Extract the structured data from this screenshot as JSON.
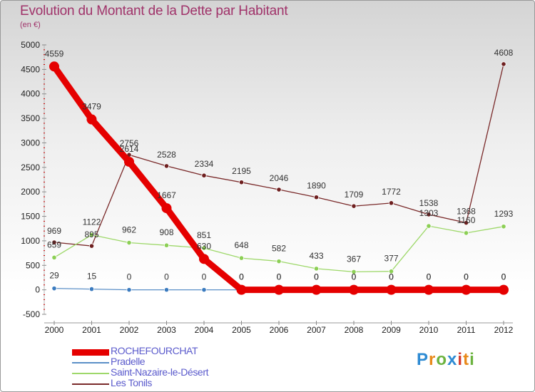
{
  "title": "Evolution du Montant de la Dette par Habitant",
  "unit_label": "(en €)",
  "logo": {
    "text": "Proxiti",
    "letter_colors": [
      "#2e8bd3",
      "#e8891a",
      "#6cb33f",
      "#2e8bd3",
      "#d63b2f",
      "#e8891a",
      "#6cb33f"
    ]
  },
  "chart_data": {
    "type": "line",
    "title": "Evolution du Montant de la Dette par Habitant",
    "ylabel": "(en €)",
    "xlabel": "",
    "x": [
      "2000",
      "2001",
      "2002",
      "2003",
      "2004",
      "2005",
      "2006",
      "2007",
      "2008",
      "2009",
      "2010",
      "2011",
      "2012"
    ],
    "ylim": [
      -500,
      5000
    ],
    "yticks": [
      "-500",
      "0",
      "500",
      "1000",
      "1500",
      "2000",
      "2500",
      "3000",
      "3500",
      "4000",
      "4500",
      "5000"
    ],
    "grid": false,
    "legend_position": "bottom-left",
    "series": [
      {
        "name": "ROCHEFOURCHAT",
        "color": "#e50000",
        "marker": "#e50000",
        "emphasis": true,
        "values": [
          4559,
          3479,
          2614,
          1667,
          630,
          0,
          0,
          0,
          0,
          0,
          0,
          0,
          0
        ],
        "labels": [
          "4559",
          "3479",
          "2614",
          "1667",
          "630",
          "0",
          "0",
          "0",
          "0",
          "0",
          "0",
          "0",
          "0"
        ]
      },
      {
        "name": "Pradelle",
        "color": "#5b8fc7",
        "marker": "#3b7bbf",
        "emphasis": false,
        "values": [
          29,
          15,
          0,
          0,
          0,
          0,
          0,
          0,
          0,
          0,
          0,
          0,
          0
        ],
        "labels": [
          "29",
          "15",
          "0",
          "0",
          "0",
          "0",
          "0",
          "0",
          "0",
          "0",
          "0",
          "0",
          "0"
        ]
      },
      {
        "name": "Saint-Nazaire-le-Désert",
        "color": "#9ed86a",
        "marker": "#8ccf55",
        "emphasis": false,
        "values": [
          659,
          1122,
          962,
          908,
          851,
          648,
          582,
          433,
          367,
          377,
          1303,
          1160,
          1293
        ],
        "labels": [
          "659",
          "1122",
          "962",
          "908",
          "851",
          "648",
          "582",
          "433",
          "367",
          "377",
          "1303",
          "1160",
          "1293"
        ]
      },
      {
        "name": "Les Tonils",
        "color": "#7a2a2a",
        "marker": "#6e1f1f",
        "emphasis": false,
        "values": [
          969,
          895,
          2756,
          2528,
          2334,
          2195,
          2046,
          1890,
          1709,
          1772,
          1538,
          1368,
          4608
        ],
        "labels": [
          "969",
          "895",
          "2756",
          "2528",
          "2334",
          "2195",
          "2046",
          "1890",
          "1709",
          "1772",
          "1538",
          "1368",
          "4608"
        ]
      }
    ]
  }
}
